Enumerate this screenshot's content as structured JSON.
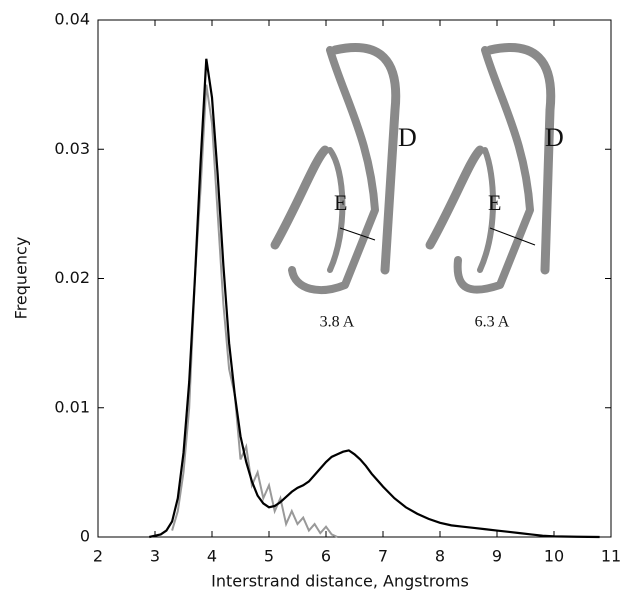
{
  "chart_data": {
    "type": "line",
    "xlabel": "Interstrand distance, Angstroms",
    "ylabel": "Frequency",
    "xlim": [
      2,
      11
    ],
    "ylim": [
      0,
      0.04
    ],
    "xticks": [
      2,
      3,
      4,
      5,
      6,
      7,
      8,
      9,
      10,
      11
    ],
    "yticks": [
      0,
      0.01,
      0.02,
      0.03,
      0.04
    ],
    "annotations": [
      "D",
      "E",
      "3.8 A",
      "D",
      "E",
      "6.3 A"
    ],
    "series": [
      {
        "color": "#000000",
        "x": [
          2.9,
          3.0,
          3.1,
          3.2,
          3.3,
          3.4,
          3.5,
          3.6,
          3.7,
          3.8,
          3.9,
          4.0,
          4.1,
          4.2,
          4.3,
          4.4,
          4.5,
          4.6,
          4.7,
          4.8,
          4.9,
          5.0,
          5.1,
          5.2,
          5.3,
          5.4,
          5.5,
          5.6,
          5.7,
          5.8,
          5.9,
          6.0,
          6.1,
          6.2,
          6.3,
          6.4,
          6.5,
          6.6,
          6.7,
          6.8,
          6.9,
          7.0,
          7.2,
          7.4,
          7.6,
          7.8,
          8.0,
          8.2,
          8.4,
          8.6,
          8.8,
          9.0,
          9.2,
          9.4,
          9.6,
          9.8,
          10.0,
          10.4,
          10.8
        ],
        "values": [
          0,
          0.0001,
          0.0002,
          0.0005,
          0.0012,
          0.003,
          0.0065,
          0.012,
          0.02,
          0.029,
          0.037,
          0.034,
          0.028,
          0.021,
          0.015,
          0.011,
          0.0078,
          0.0058,
          0.0043,
          0.0032,
          0.0026,
          0.0023,
          0.0024,
          0.0027,
          0.0031,
          0.0035,
          0.0038,
          0.004,
          0.0043,
          0.0048,
          0.0053,
          0.0058,
          0.0062,
          0.0064,
          0.0066,
          0.0067,
          0.0064,
          0.006,
          0.0055,
          0.0049,
          0.0044,
          0.0039,
          0.003,
          0.0023,
          0.0018,
          0.0014,
          0.0011,
          0.0009,
          0.0008,
          0.0007,
          0.0006,
          0.0005,
          0.0004,
          0.0003,
          0.0002,
          0.0001,
          5e-05,
          2e-05,
          0
        ]
      },
      {
        "color": "#999999",
        "x": [
          3.3,
          3.4,
          3.5,
          3.6,
          3.7,
          3.8,
          3.9,
          4.0,
          4.1,
          4.2,
          4.3,
          4.4,
          4.5,
          4.6,
          4.7,
          4.8,
          4.9,
          5.0,
          5.1,
          5.2,
          5.3,
          5.4,
          5.5,
          5.6,
          5.7,
          5.8,
          5.9,
          6.0,
          6.1,
          6.2
        ],
        "values": [
          0.0005,
          0.002,
          0.005,
          0.01,
          0.02,
          0.027,
          0.035,
          0.032,
          0.025,
          0.018,
          0.013,
          0.011,
          0.006,
          0.007,
          0.004,
          0.005,
          0.003,
          0.004,
          0.002,
          0.003,
          0.001,
          0.002,
          0.001,
          0.0015,
          0.0005,
          0.001,
          0.0003,
          0.0008,
          0.0002,
          0
        ]
      }
    ]
  }
}
